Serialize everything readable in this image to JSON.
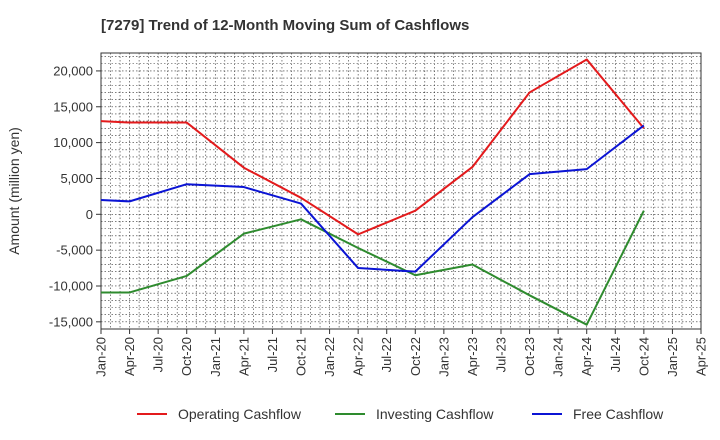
{
  "chart_data": {
    "type": "line",
    "title": "[7279]  Trend of 12-Month Moving Sum of Cashflows",
    "xlabel": "",
    "ylabel": "Amount (million yen)",
    "ylim": [
      -16000,
      22500
    ],
    "yticks": [
      -15000,
      -10000,
      -5000,
      0,
      5000,
      10000,
      15000,
      20000
    ],
    "ytick_labels": [
      "-15,000",
      "-10,000",
      "-5,000",
      "0",
      "5,000",
      "10,000",
      "15,000",
      "20,000"
    ],
    "x_categories": [
      "Jan-20",
      "Apr-20",
      "Jul-20",
      "Oct-20",
      "Jan-21",
      "Apr-21",
      "Jul-21",
      "Oct-21",
      "Jan-22",
      "Apr-22",
      "Jul-22",
      "Oct-22",
      "Jan-23",
      "Apr-23",
      "Jul-23",
      "Oct-23",
      "Jan-24",
      "Apr-24",
      "Jul-24",
      "Oct-24",
      "Jan-25",
      "Apr-25"
    ],
    "grid": true,
    "legend_position": "bottom",
    "series": [
      {
        "name": "Operating Cashflow",
        "color": "#e31a1c",
        "points": [
          [
            "Jan-20",
            13000
          ],
          [
            "Apr-20",
            12800
          ],
          [
            "Oct-20",
            12800
          ],
          [
            "Apr-21",
            6500
          ],
          [
            "Oct-21",
            2300
          ],
          [
            "Apr-22",
            -2800
          ],
          [
            "Oct-22",
            500
          ],
          [
            "Apr-23",
            6600
          ],
          [
            "Oct-23",
            17000
          ],
          [
            "Apr-24",
            21600
          ],
          [
            "Oct-24",
            12000
          ]
        ]
      },
      {
        "name": "Investing Cashflow",
        "color": "#2e8b2e",
        "points": [
          [
            "Jan-20",
            -10900
          ],
          [
            "Apr-20",
            -10900
          ],
          [
            "Oct-20",
            -8600
          ],
          [
            "Apr-21",
            -2700
          ],
          [
            "Oct-21",
            -700
          ],
          [
            "Apr-22",
            -4700
          ],
          [
            "Oct-22",
            -8500
          ],
          [
            "Apr-23",
            -7000
          ],
          [
            "Oct-23",
            -11300
          ],
          [
            "Apr-24",
            -15400
          ],
          [
            "Oct-24",
            500
          ]
        ]
      },
      {
        "name": "Free Cashflow",
        "color": "#0b14d4",
        "points": [
          [
            "Jan-20",
            2000
          ],
          [
            "Apr-20",
            1800
          ],
          [
            "Oct-20",
            4200
          ],
          [
            "Apr-21",
            3800
          ],
          [
            "Oct-21",
            1500
          ],
          [
            "Apr-22",
            -7500
          ],
          [
            "Oct-22",
            -8000
          ],
          [
            "Apr-23",
            -400
          ],
          [
            "Oct-23",
            5600
          ],
          [
            "Apr-24",
            6300
          ],
          [
            "Oct-24",
            12400
          ]
        ]
      }
    ]
  }
}
